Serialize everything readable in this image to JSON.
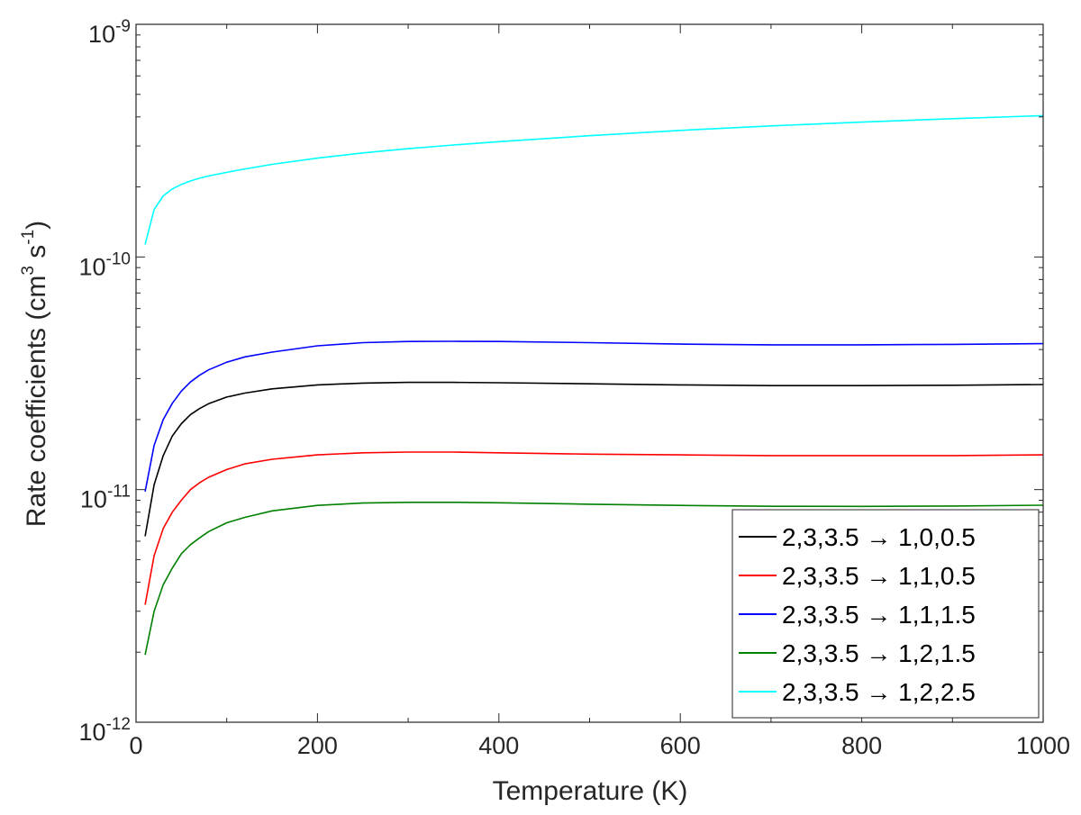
{
  "chart_data": {
    "type": "line",
    "xlabel": "Temperature (K)",
    "ylabel": {
      "main": "Rate coefficients (cm",
      "exp1": "3",
      "mid": " s",
      "exp2": "-1",
      "end": ")"
    },
    "xlim": [
      0,
      1000
    ],
    "ylim": [
      1e-12,
      1e-09
    ],
    "yscale": "log",
    "grid": false,
    "legend_position": "bottom-right",
    "x_ticks": [
      "0",
      "200",
      "400",
      "600",
      "800",
      "1000"
    ],
    "y_ticks": [
      {
        "base": "10",
        "exp": "-12"
      },
      {
        "base": "10",
        "exp": "-11"
      },
      {
        "base": "10",
        "exp": "-10"
      },
      {
        "base": "10",
        "exp": "-9"
      }
    ],
    "x": [
      10,
      20,
      30,
      40,
      50,
      60,
      70,
      80,
      100,
      120,
      150,
      200,
      250,
      300,
      350,
      400,
      500,
      600,
      700,
      800,
      900,
      1000
    ],
    "series": [
      {
        "name": "2,3,3.5 → 1,0,0.5",
        "color": "#000000",
        "values": [
          6.3e-12,
          1.05e-11,
          1.4e-11,
          1.7e-11,
          1.92e-11,
          2.1e-11,
          2.23e-11,
          2.34e-11,
          2.5e-11,
          2.6e-11,
          2.71e-11,
          2.82e-11,
          2.87e-11,
          2.89e-11,
          2.89e-11,
          2.88e-11,
          2.85e-11,
          2.82e-11,
          2.8e-11,
          2.8e-11,
          2.81e-11,
          2.83e-11
        ]
      },
      {
        "name": "2,3,3.5 → 1,1,0.5",
        "color": "#ff0000",
        "values": [
          3.2e-12,
          5.2e-12,
          6.8e-12,
          8e-12,
          9e-12,
          1e-11,
          1.07e-11,
          1.13e-11,
          1.22e-11,
          1.29e-11,
          1.35e-11,
          1.41e-11,
          1.44e-11,
          1.45e-11,
          1.45e-11,
          1.44e-11,
          1.42e-11,
          1.41e-11,
          1.4e-11,
          1.4e-11,
          1.4e-11,
          1.41e-11
        ]
      },
      {
        "name": "2,3,3.5 → 1,1,1.5",
        "color": "#0000ff",
        "values": [
          9.8e-12,
          1.55e-11,
          2e-11,
          2.35e-11,
          2.65e-11,
          2.9e-11,
          3.1e-11,
          3.27e-11,
          3.53e-11,
          3.72e-11,
          3.9e-11,
          4.15e-11,
          4.28e-11,
          4.33e-11,
          4.34e-11,
          4.33e-11,
          4.28e-11,
          4.22e-11,
          4.19e-11,
          4.19e-11,
          4.21e-11,
          4.24e-11
        ]
      },
      {
        "name": "2,3,3.5 → 1,2,1.5",
        "color": "#008000",
        "values": [
          1.95e-12,
          3e-12,
          3.9e-12,
          4.6e-12,
          5.3e-12,
          5.8e-12,
          6.2e-12,
          6.6e-12,
          7.2e-12,
          7.6e-12,
          8.1e-12,
          8.55e-12,
          8.75e-12,
          8.82e-12,
          8.82e-12,
          8.78e-12,
          8.65e-12,
          8.55e-12,
          8.48e-12,
          8.47e-12,
          8.5e-12,
          8.57e-12
        ]
      },
      {
        "name": "2,3,3.5 → 1,2,2.5",
        "color": "#00ffff",
        "values": [
          1.13e-10,
          1.6e-10,
          1.83e-10,
          1.96e-10,
          2.05e-10,
          2.12e-10,
          2.18e-10,
          2.23e-10,
          2.31e-10,
          2.39e-10,
          2.5e-10,
          2.66e-10,
          2.8e-10,
          2.92e-10,
          3.03e-10,
          3.13e-10,
          3.32e-10,
          3.5e-10,
          3.66e-10,
          3.8e-10,
          3.93e-10,
          4.05e-10
        ]
      }
    ]
  }
}
